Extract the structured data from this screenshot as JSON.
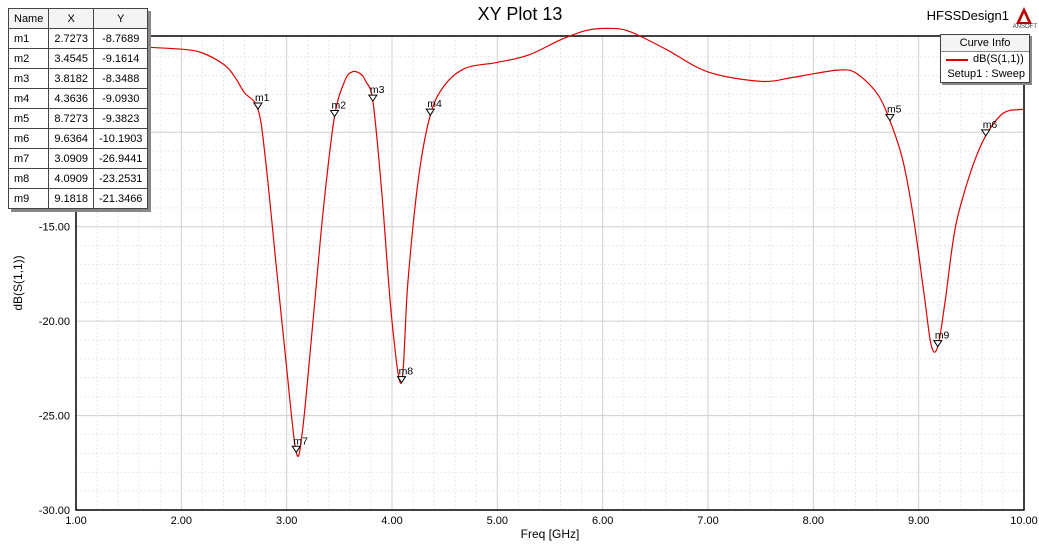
{
  "header": {
    "title": "XY Plot 13",
    "design": "HFSSDesign1",
    "logo_text": "ANSOFT"
  },
  "marker_table": {
    "headers": [
      "Name",
      "X",
      "Y"
    ],
    "rows": [
      {
        "name": "m1",
        "x": "2.7273",
        "y": "-8.7689"
      },
      {
        "name": "m2",
        "x": "3.4545",
        "y": "-9.1614"
      },
      {
        "name": "m3",
        "x": "3.8182",
        "y": "-8.3488"
      },
      {
        "name": "m4",
        "x": "4.3636",
        "y": "-9.0930"
      },
      {
        "name": "m5",
        "x": "8.7273",
        "y": "-9.3823"
      },
      {
        "name": "m6",
        "x": "9.6364",
        "y": "-10.1903"
      },
      {
        "name": "m7",
        "x": "3.0909",
        "y": "-26.9441"
      },
      {
        "name": "m8",
        "x": "4.0909",
        "y": "-23.2531"
      },
      {
        "name": "m9",
        "x": "9.1818",
        "y": "-21.3466"
      }
    ]
  },
  "legend": {
    "title": "Curve Info",
    "series_name": "dB(S(1,1))",
    "subtitle": "Setup1 : Sweep"
  },
  "chart_data": {
    "type": "line",
    "title": "XY Plot 13",
    "xlabel": "Freq [GHz]",
    "ylabel": "dB(S(1,1))",
    "xlim": [
      1.0,
      10.0
    ],
    "ylim": [
      -30.0,
      -4.9
    ],
    "x_ticks": [
      "1.00",
      "2.00",
      "3.00",
      "4.00",
      "5.00",
      "6.00",
      "7.00",
      "8.00",
      "9.00",
      "10.00"
    ],
    "y_ticks": [
      "-15.00",
      "-20.00",
      "-25.00",
      "-30.00"
    ],
    "grid": true,
    "line_color": "#e00000",
    "series": [
      {
        "name": "dB(S(1,1))",
        "points": [
          [
            1.0,
            -5.3
          ],
          [
            1.5,
            -5.45
          ],
          [
            2.0,
            -5.6
          ],
          [
            2.2,
            -5.8
          ],
          [
            2.4,
            -6.4
          ],
          [
            2.5,
            -7.0
          ],
          [
            2.6,
            -7.9
          ],
          [
            2.7273,
            -8.7689
          ],
          [
            2.8,
            -11.5
          ],
          [
            2.9,
            -17.0
          ],
          [
            3.0,
            -22.5
          ],
          [
            3.0909,
            -26.9441
          ],
          [
            3.15,
            -25.8
          ],
          [
            3.25,
            -20.0
          ],
          [
            3.35,
            -14.0
          ],
          [
            3.4545,
            -9.1614
          ],
          [
            3.55,
            -7.3
          ],
          [
            3.62,
            -6.8
          ],
          [
            3.7,
            -6.9
          ],
          [
            3.75,
            -7.3
          ],
          [
            3.8182,
            -8.3488
          ],
          [
            3.9,
            -13.0
          ],
          [
            4.0,
            -20.0
          ],
          [
            4.0909,
            -23.2531
          ],
          [
            4.15,
            -18.0
          ],
          [
            4.25,
            -12.5
          ],
          [
            4.3636,
            -9.093
          ],
          [
            4.5,
            -7.5
          ],
          [
            4.7,
            -6.6
          ],
          [
            5.0,
            -6.3
          ],
          [
            5.3,
            -5.9
          ],
          [
            5.6,
            -5.1
          ],
          [
            5.85,
            -4.6
          ],
          [
            6.05,
            -4.5
          ],
          [
            6.25,
            -4.65
          ],
          [
            6.6,
            -5.6
          ],
          [
            7.0,
            -6.8
          ],
          [
            7.5,
            -7.3
          ],
          [
            7.8,
            -7.1
          ],
          [
            8.0,
            -6.9
          ],
          [
            8.25,
            -6.7
          ],
          [
            8.4,
            -6.85
          ],
          [
            8.6,
            -7.9
          ],
          [
            8.7273,
            -9.3823
          ],
          [
            8.85,
            -11.5
          ],
          [
            8.95,
            -14.5
          ],
          [
            9.05,
            -18.5
          ],
          [
            9.12,
            -21.3
          ],
          [
            9.1818,
            -21.3466
          ],
          [
            9.25,
            -19.0
          ],
          [
            9.35,
            -15.0
          ],
          [
            9.5,
            -12.0
          ],
          [
            9.6364,
            -10.1903
          ],
          [
            9.8,
            -9.0
          ],
          [
            9.95,
            -8.8
          ],
          [
            10.0,
            -8.8
          ]
        ]
      }
    ],
    "markers": [
      {
        "name": "m1",
        "x": 2.7273,
        "y": -8.7689
      },
      {
        "name": "m2",
        "x": 3.4545,
        "y": -9.1614
      },
      {
        "name": "m3",
        "x": 3.8182,
        "y": -8.3488
      },
      {
        "name": "m4",
        "x": 4.3636,
        "y": -9.093
      },
      {
        "name": "m5",
        "x": 8.7273,
        "y": -9.3823
      },
      {
        "name": "m6",
        "x": 9.6364,
        "y": -10.1903
      },
      {
        "name": "m7",
        "x": 3.0909,
        "y": -26.9441
      },
      {
        "name": "m8",
        "x": 4.0909,
        "y": -23.2531
      },
      {
        "name": "m9",
        "x": 9.1818,
        "y": -21.3466
      }
    ]
  }
}
